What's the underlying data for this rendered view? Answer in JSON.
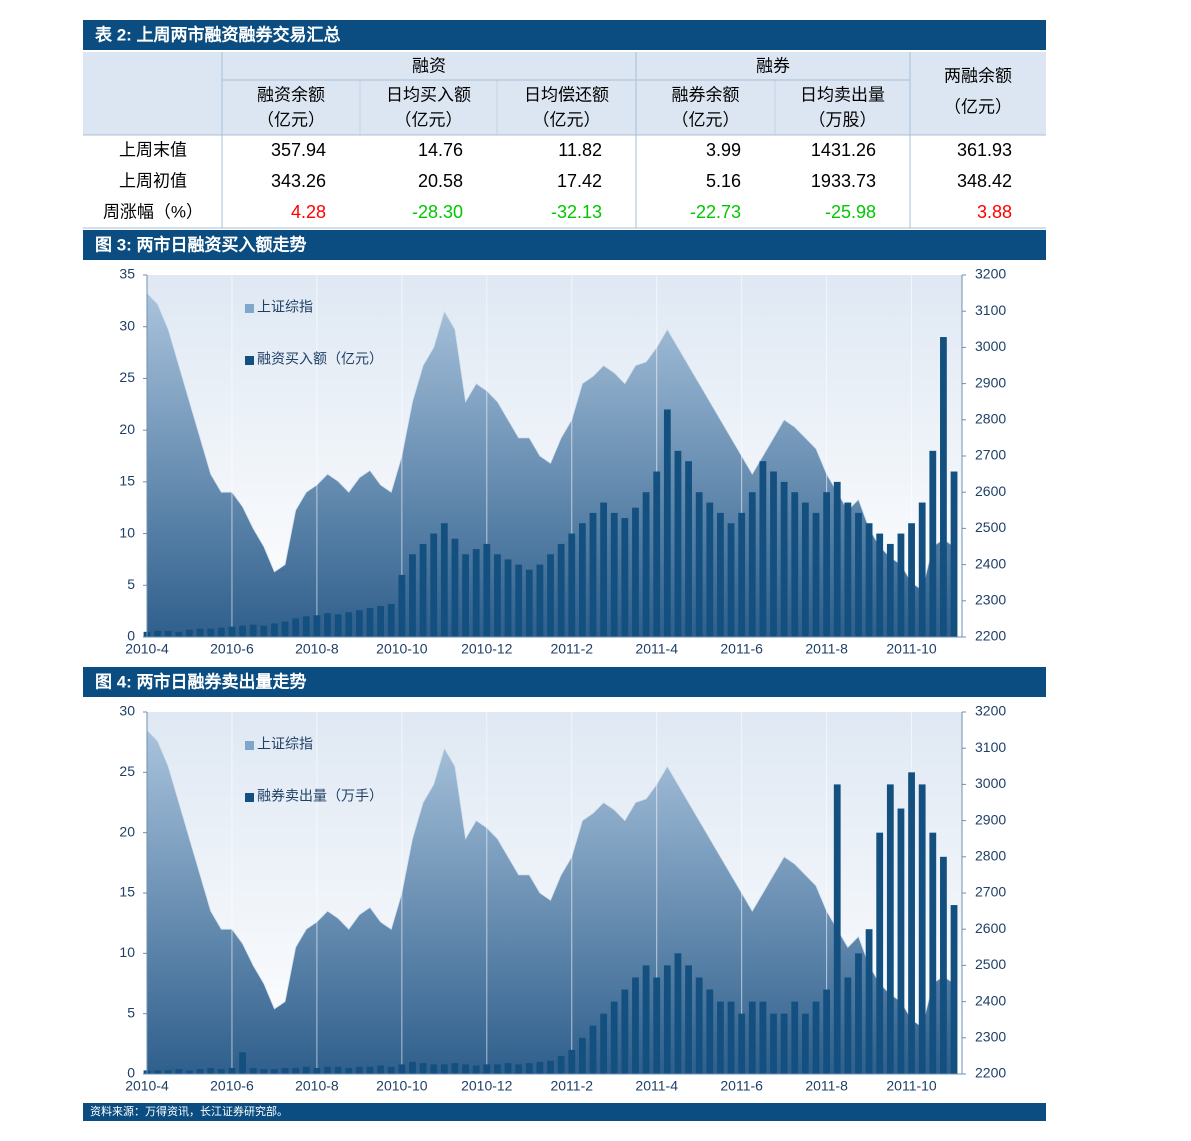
{
  "table": {
    "title": "表 2:  上周两市融资融券交易汇总",
    "groups": [
      "融资",
      "融券"
    ],
    "columns": [
      [
        "融资余额",
        "（亿元）"
      ],
      [
        "日均买入额",
        "（亿元）"
      ],
      [
        "日均偿还额",
        "（亿元）"
      ],
      [
        "融券余额",
        "（亿元）"
      ],
      [
        "日均卖出量",
        "（万股）"
      ],
      [
        "两融余额",
        "（亿元）"
      ]
    ],
    "rows": [
      {
        "label": "上周末值",
        "values": [
          "357.94",
          "14.76",
          "11.82",
          "3.99",
          "1431.26",
          "361.93"
        ]
      },
      {
        "label": "上周初值",
        "values": [
          "343.26",
          "20.58",
          "17.42",
          "5.16",
          "1933.73",
          "348.42"
        ]
      },
      {
        "label": "周涨幅（%）",
        "values": [
          "4.28",
          "-28.30",
          "-32.13",
          "-22.73",
          "-25.98",
          "3.88"
        ]
      }
    ]
  },
  "chart_data": [
    {
      "type": "combo",
      "title": "图 3:  两市日融资买入额走势",
      "legend": "upper left",
      "categories": [
        "2010-4",
        null,
        null,
        null,
        null,
        null,
        null,
        null,
        "2010-6",
        null,
        null,
        null,
        null,
        null,
        null,
        null,
        "2010-8",
        null,
        null,
        null,
        null,
        null,
        null,
        null,
        "2010-10",
        null,
        null,
        null,
        null,
        null,
        null,
        null,
        "2010-12",
        null,
        null,
        null,
        null,
        null,
        null,
        null,
        "2011-2",
        null,
        null,
        null,
        null,
        null,
        null,
        null,
        "2011-4",
        null,
        null,
        null,
        null,
        null,
        null,
        null,
        "2011-6",
        null,
        null,
        null,
        null,
        null,
        null,
        null,
        "2011-8",
        null,
        null,
        null,
        null,
        null,
        null,
        null,
        "2011-10",
        null,
        null,
        null,
        null
      ],
      "ylim": [
        0,
        35
      ],
      "yticks": [
        0,
        5,
        10,
        15,
        20,
        25,
        30,
        35
      ],
      "y2lim": [
        2200,
        3200
      ],
      "y2ticks": [
        2200,
        2300,
        2400,
        2500,
        2600,
        2700,
        2800,
        2900,
        3000,
        3100,
        3200
      ],
      "series": [
        {
          "name": "上证综指",
          "kind": "area",
          "axis": "y2",
          "color": "#a9c3dc",
          "values": [
            3150,
            3120,
            3050,
            2950,
            2850,
            2750,
            2650,
            2600,
            2600,
            2560,
            2500,
            2450,
            2380,
            2400,
            2550,
            2600,
            2620,
            2650,
            2630,
            2600,
            2640,
            2660,
            2620,
            2600,
            2700,
            2850,
            2950,
            3000,
            3100,
            3050,
            2850,
            2900,
            2880,
            2850,
            2800,
            2750,
            2750,
            2700,
            2680,
            2750,
            2800,
            2900,
            2920,
            2950,
            2930,
            2900,
            2950,
            2960,
            3000,
            3050,
            3000,
            2950,
            2900,
            2850,
            2800,
            2750,
            2700,
            2650,
            2700,
            2750,
            2800,
            2780,
            2750,
            2720,
            2650,
            2600,
            2550,
            2580,
            2500,
            2450,
            2420,
            2400,
            2350,
            2330,
            2450,
            2470,
            2450
          ]
        },
        {
          "name": "融资买入额（亿元）",
          "kind": "bar",
          "axis": "y",
          "color": "#14507f",
          "values": [
            0.5,
            0.6,
            0.6,
            0.5,
            0.7,
            0.8,
            0.8,
            0.9,
            1,
            1.1,
            1.2,
            1.1,
            1.3,
            1.5,
            1.8,
            2,
            2.1,
            2.3,
            2.2,
            2.4,
            2.6,
            2.8,
            3,
            3.2,
            6,
            8,
            9,
            10,
            11,
            9.5,
            8,
            8.5,
            9,
            8,
            7.5,
            7,
            6.5,
            7,
            8,
            9,
            10,
            11,
            12,
            13,
            12,
            11.5,
            12.5,
            14,
            16,
            22,
            18,
            17,
            14,
            13,
            12,
            11,
            12,
            14,
            17,
            16,
            15,
            14,
            13,
            12,
            14,
            15,
            13,
            12,
            11,
            10,
            9,
            10,
            11,
            13,
            18,
            29,
            16
          ]
        }
      ]
    },
    {
      "type": "combo",
      "title": "图 4:  两市日融券卖出量走势",
      "legend": "upper left",
      "categories": [
        "2010-4",
        null,
        null,
        null,
        null,
        null,
        null,
        null,
        "2010-6",
        null,
        null,
        null,
        null,
        null,
        null,
        null,
        "2010-8",
        null,
        null,
        null,
        null,
        null,
        null,
        null,
        "2010-10",
        null,
        null,
        null,
        null,
        null,
        null,
        null,
        "2010-12",
        null,
        null,
        null,
        null,
        null,
        null,
        null,
        "2011-2",
        null,
        null,
        null,
        null,
        null,
        null,
        null,
        "2011-4",
        null,
        null,
        null,
        null,
        null,
        null,
        null,
        "2011-6",
        null,
        null,
        null,
        null,
        null,
        null,
        null,
        "2011-8",
        null,
        null,
        null,
        null,
        null,
        null,
        null,
        "2011-10",
        null,
        null,
        null,
        null
      ],
      "ylim": [
        0,
        30
      ],
      "yticks": [
        0,
        5,
        10,
        15,
        20,
        25,
        30
      ],
      "y2lim": [
        2200,
        3200
      ],
      "y2ticks": [
        2200,
        2300,
        2400,
        2500,
        2600,
        2700,
        2800,
        2900,
        3000,
        3100,
        3200
      ],
      "series": [
        {
          "name": "上证综指",
          "kind": "area",
          "axis": "y2",
          "color": "#a9c3dc",
          "values": [
            3150,
            3120,
            3050,
            2950,
            2850,
            2750,
            2650,
            2600,
            2600,
            2560,
            2500,
            2450,
            2380,
            2400,
            2550,
            2600,
            2620,
            2650,
            2630,
            2600,
            2640,
            2660,
            2620,
            2600,
            2700,
            2850,
            2950,
            3000,
            3100,
            3050,
            2850,
            2900,
            2880,
            2850,
            2800,
            2750,
            2750,
            2700,
            2680,
            2750,
            2800,
            2900,
            2920,
            2950,
            2930,
            2900,
            2950,
            2960,
            3000,
            3050,
            3000,
            2950,
            2900,
            2850,
            2800,
            2750,
            2700,
            2650,
            2700,
            2750,
            2800,
            2780,
            2750,
            2720,
            2650,
            2600,
            2550,
            2580,
            2500,
            2450,
            2420,
            2400,
            2350,
            2330,
            2450,
            2470,
            2450
          ]
        },
        {
          "name": "融券卖出量（万手）",
          "kind": "bar",
          "axis": "y",
          "color": "#14507f",
          "values": [
            0.3,
            0.3,
            0.3,
            0.4,
            0.3,
            0.4,
            0.5,
            0.4,
            0.5,
            1.8,
            0.5,
            0.4,
            0.4,
            0.5,
            0.5,
            0.6,
            0.5,
            0.6,
            0.6,
            0.5,
            0.6,
            0.6,
            0.7,
            0.6,
            0.8,
            1,
            0.9,
            0.8,
            0.8,
            0.9,
            0.8,
            0.7,
            0.8,
            0.8,
            0.9,
            0.8,
            0.9,
            1,
            1.1,
            1.5,
            2,
            3,
            4,
            5,
            6,
            7,
            8,
            9,
            8,
            9,
            10,
            9,
            8,
            7,
            6,
            6,
            5,
            6,
            6,
            5,
            5,
            6,
            5,
            6,
            7,
            24,
            8,
            10,
            12,
            20,
            24,
            22,
            25,
            24,
            20,
            18,
            14
          ]
        }
      ]
    }
  ],
  "source": "资料来源：万得资讯，长江证券研究部。"
}
